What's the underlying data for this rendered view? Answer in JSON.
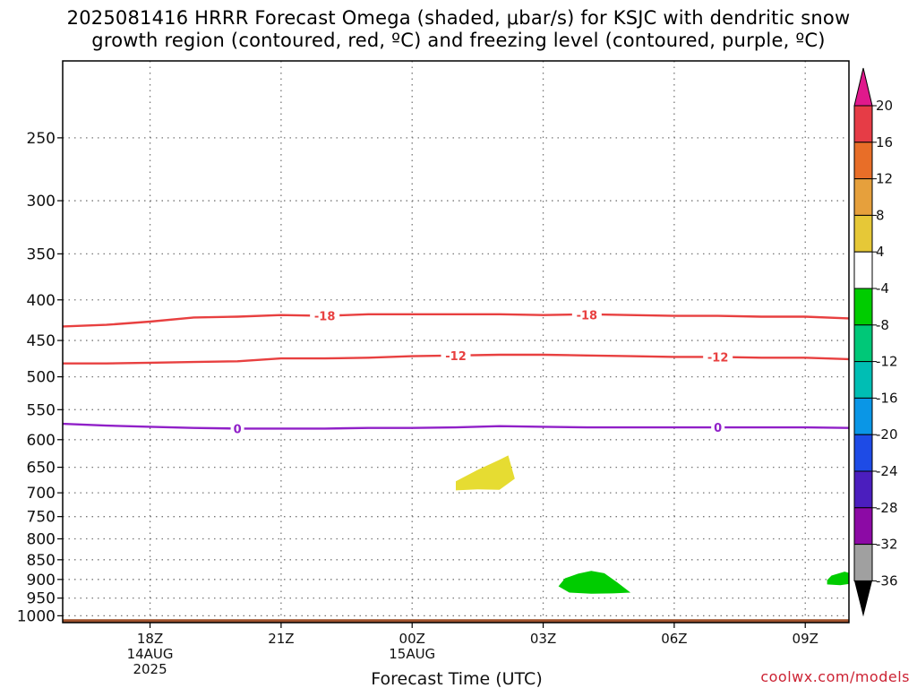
{
  "title_line1": "2025081416 HRRR Forecast Omega (shaded, μbar/s) for KSJC with dendritic snow",
  "title_line2": "growth region (contoured, red, ºC) and freezing level (contoured, purple, ºC)",
  "credit": "coolwx.com/models",
  "chart_data": {
    "type": "contour",
    "title": "2025081416 HRRR Forecast Omega (shaded, μbar/s) for KSJC with dendritic snow growth region (contoured, red, ºC) and freezing level (contoured, purple, ºC)",
    "xlabel": "Forecast Time (UTC)",
    "ylabel": "",
    "xlim_hours": [
      16,
      34
    ],
    "ylim": [
      1020,
      200
    ],
    "y_scale": "log-pressure",
    "grid": true,
    "y_ticks": [
      250,
      300,
      350,
      400,
      450,
      500,
      550,
      600,
      650,
      700,
      750,
      800,
      850,
      900,
      950,
      1000
    ],
    "x_ticks": [
      {
        "h": 18,
        "lines": [
          "18Z",
          "14AUG",
          "2025"
        ]
      },
      {
        "h": 21,
        "lines": [
          "21Z"
        ]
      },
      {
        "h": 24,
        "lines": [
          "00Z",
          "15AUG"
        ]
      },
      {
        "h": 27,
        "lines": [
          "03Z"
        ]
      },
      {
        "h": 30,
        "lines": [
          "06Z"
        ]
      },
      {
        "h": 33,
        "lines": [
          "09Z"
        ]
      }
    ],
    "contours": [
      {
        "name": "-18",
        "color": "#e84040",
        "points": [
          [
            16,
            432
          ],
          [
            17,
            430
          ],
          [
            18,
            426
          ],
          [
            19,
            421
          ],
          [
            20,
            420
          ],
          [
            21,
            418
          ],
          [
            22,
            419
          ],
          [
            23,
            417
          ],
          [
            24,
            417
          ],
          [
            25,
            417
          ],
          [
            26,
            417
          ],
          [
            27,
            418
          ],
          [
            28,
            417
          ],
          [
            29,
            418
          ],
          [
            30,
            419
          ],
          [
            31,
            419
          ],
          [
            32,
            420
          ],
          [
            33,
            420
          ],
          [
            34,
            422
          ]
        ],
        "labels": [
          {
            "h": 22,
            "p": 419
          },
          {
            "h": 28,
            "p": 418
          }
        ]
      },
      {
        "name": "-12",
        "color": "#e84040",
        "points": [
          [
            16,
            481
          ],
          [
            17,
            481
          ],
          [
            18,
            480
          ],
          [
            19,
            479
          ],
          [
            20,
            478
          ],
          [
            21,
            474
          ],
          [
            22,
            474
          ],
          [
            23,
            473
          ],
          [
            24,
            471
          ],
          [
            25,
            470
          ],
          [
            26,
            469
          ],
          [
            27,
            469
          ],
          [
            28,
            470
          ],
          [
            29,
            471
          ],
          [
            30,
            472
          ],
          [
            31,
            472
          ],
          [
            32,
            473
          ],
          [
            33,
            473
          ],
          [
            34,
            475
          ]
        ],
        "labels": [
          {
            "h": 25,
            "p": 470
          },
          {
            "h": 31,
            "p": 472
          }
        ]
      },
      {
        "name": "0",
        "color": "#9020c8",
        "points": [
          [
            16,
            573
          ],
          [
            17,
            576
          ],
          [
            18,
            578
          ],
          [
            19,
            580
          ],
          [
            20,
            581
          ],
          [
            21,
            581
          ],
          [
            22,
            581
          ],
          [
            23,
            580
          ],
          [
            24,
            580
          ],
          [
            25,
            579
          ],
          [
            26,
            577
          ],
          [
            27,
            578
          ],
          [
            28,
            579
          ],
          [
            29,
            579
          ],
          [
            30,
            579
          ],
          [
            31,
            579
          ],
          [
            32,
            579
          ],
          [
            33,
            579
          ],
          [
            34,
            580
          ]
        ],
        "labels": [
          {
            "h": 20,
            "p": 581
          },
          {
            "h": 31,
            "p": 579
          }
        ]
      }
    ],
    "shaded_regions": [
      {
        "range": [
          4,
          8
        ],
        "color": "#e6dc32",
        "points": [
          [
            25.0,
            677
          ],
          [
            25.5,
            655
          ],
          [
            26.0,
            636
          ],
          [
            26.2,
            628
          ],
          [
            26.35,
            672
          ],
          [
            26.0,
            694
          ],
          [
            25.5,
            693
          ],
          [
            25.0,
            695
          ]
        ]
      },
      {
        "range": [
          -8,
          -4
        ],
        "color": "#00cc00",
        "points": [
          [
            27.35,
            918
          ],
          [
            27.5,
            897
          ],
          [
            27.8,
            885
          ],
          [
            28.1,
            878
          ],
          [
            28.4,
            884
          ],
          [
            28.7,
            908
          ],
          [
            29.0,
            935
          ],
          [
            28.6,
            937
          ],
          [
            28.1,
            938
          ],
          [
            27.6,
            935
          ]
        ]
      },
      {
        "range": [
          -8,
          -4
        ],
        "color": "#00cc00",
        "points": [
          [
            33.5,
            902
          ],
          [
            33.6,
            890
          ],
          [
            33.9,
            880
          ],
          [
            34.0,
            883
          ],
          [
            34.0,
            912
          ],
          [
            33.8,
            915
          ],
          [
            33.5,
            913
          ]
        ]
      }
    ],
    "terrain": {
      "color": "#a0522d",
      "top_hpa": 1010
    },
    "colorbar": {
      "labels": [
        "20",
        "16",
        "12",
        "8",
        "4",
        "-4",
        "-8",
        "-12",
        "-16",
        "-20",
        "-24",
        "-28",
        "-32",
        "-36"
      ],
      "top_arrow_color": "#e0198c",
      "bottom_arrow_color": "#000000",
      "segments": [
        "#e63c46",
        "#e86e28",
        "#e6a03c",
        "#e6c837",
        "#ffffff",
        "#00cc00",
        "#00c878",
        "#00beb4",
        "#0a96e6",
        "#1e4be6",
        "#4b1ebe",
        "#8c0aa5",
        "#a0a0a0"
      ]
    }
  }
}
